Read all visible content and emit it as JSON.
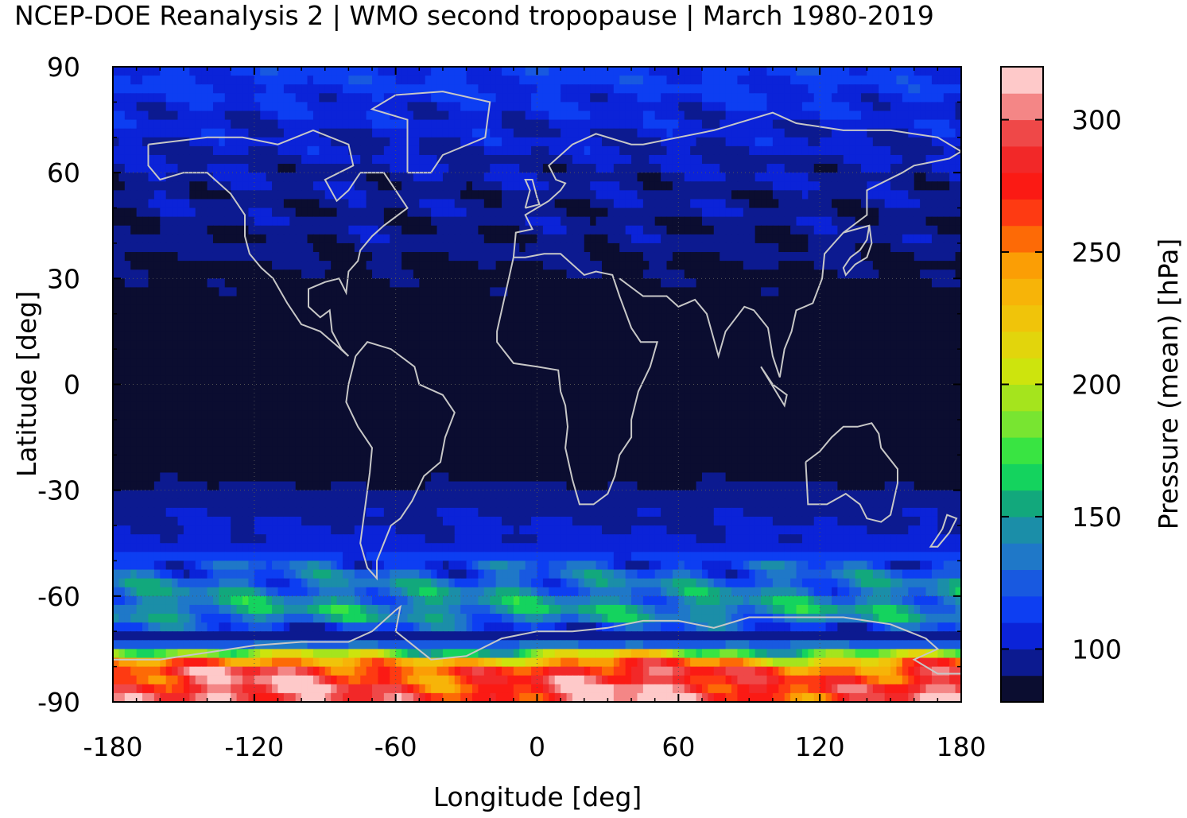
{
  "chart_data": {
    "type": "heatmap",
    "title": "NCEP-DOE Reanalysis 2 | WMO second tropopause | March 1980-2019",
    "xlabel": "Longitude [deg]",
    "ylabel": "Latitude [deg]",
    "colorbar_label": "Pressure (mean) [hPa]",
    "xlim": [
      -180,
      180
    ],
    "ylim": [
      -90,
      90
    ],
    "x_ticks": [
      -180,
      -120,
      -60,
      0,
      60,
      120,
      180
    ],
    "y_ticks": [
      90,
      60,
      30,
      0,
      -30,
      -60,
      -90
    ],
    "colorbar_range": [
      80,
      320
    ],
    "colorbar_ticks": [
      100,
      150,
      200,
      250,
      300
    ],
    "colorbar_colors": [
      "#0b0d30",
      "#0c1a90",
      "#0b23d8",
      "#0d3ef2",
      "#1859e0",
      "#1f78c8",
      "#1b8ea8",
      "#12a87c",
      "#14d35e",
      "#39e442",
      "#78e531",
      "#a5e41d",
      "#cde40d",
      "#e2d50c",
      "#f0c40a",
      "#f7b408",
      "#fb9e05",
      "#fd6a06",
      "#fe3a12",
      "#fb1a14",
      "#f22828",
      "#ef4848",
      "#f48686",
      "#fec9c9"
    ],
    "grid": true,
    "coastlines": true,
    "zonal_mean_pressure_hPa": [
      {
        "lat": 85,
        "value": 112
      },
      {
        "lat": 75,
        "value": 104
      },
      {
        "lat": 65,
        "value": 100
      },
      {
        "lat": 55,
        "value": 96
      },
      {
        "lat": 45,
        "value": 94
      },
      {
        "lat": 35,
        "value": 90
      },
      {
        "lat": 25,
        "value": 87
      },
      {
        "lat": 15,
        "value": 84
      },
      {
        "lat": 5,
        "value": 83
      },
      {
        "lat": -5,
        "value": 83
      },
      {
        "lat": -15,
        "value": 84
      },
      {
        "lat": -25,
        "value": 86
      },
      {
        "lat": -35,
        "value": 98
      },
      {
        "lat": -45,
        "value": 102
      },
      {
        "lat": -55,
        "value": 130
      },
      {
        "lat": -65,
        "value": 150
      },
      {
        "lat": -72,
        "value": 90
      },
      {
        "lat": -80,
        "value": 270
      },
      {
        "lat": -87,
        "value": 290
      }
    ]
  }
}
